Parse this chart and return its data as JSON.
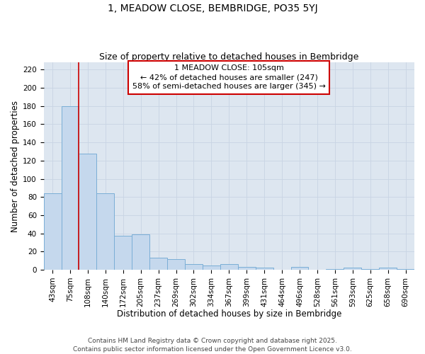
{
  "title": "1, MEADOW CLOSE, BEMBRIDGE, PO35 5YJ",
  "subtitle": "Size of property relative to detached houses in Bembridge",
  "xlabel": "Distribution of detached houses by size in Bembridge",
  "ylabel": "Number of detached properties",
  "categories": [
    "43sqm",
    "75sqm",
    "108sqm",
    "140sqm",
    "172sqm",
    "205sqm",
    "237sqm",
    "269sqm",
    "302sqm",
    "334sqm",
    "367sqm",
    "399sqm",
    "431sqm",
    "464sqm",
    "496sqm",
    "528sqm",
    "561sqm",
    "593sqm",
    "625sqm",
    "658sqm",
    "690sqm"
  ],
  "values": [
    84,
    180,
    128,
    84,
    37,
    39,
    13,
    12,
    6,
    5,
    6,
    3,
    2,
    0,
    3,
    0,
    1,
    2,
    1,
    2,
    1
  ],
  "bar_color": "#c5d8ed",
  "bar_edge_color": "#7aaed6",
  "vline_x": 1.5,
  "vline_color": "#cc0000",
  "annotation_text": "1 MEADOW CLOSE: 105sqm\n← 42% of detached houses are smaller (247)\n58% of semi-detached houses are larger (345) →",
  "annotation_box_edgecolor": "#cc0000",
  "grid_color": "#c8d4e4",
  "bg_color": "#dde6f0",
  "yticks": [
    0,
    20,
    40,
    60,
    80,
    100,
    120,
    140,
    160,
    180,
    200,
    220
  ],
  "footer": "Contains HM Land Registry data © Crown copyright and database right 2025.\nContains public sector information licensed under the Open Government Licence v3.0.",
  "title_fontsize": 10,
  "subtitle_fontsize": 9,
  "axis_label_fontsize": 8.5,
  "tick_fontsize": 7.5,
  "annotation_fontsize": 8,
  "footer_fontsize": 6.5
}
